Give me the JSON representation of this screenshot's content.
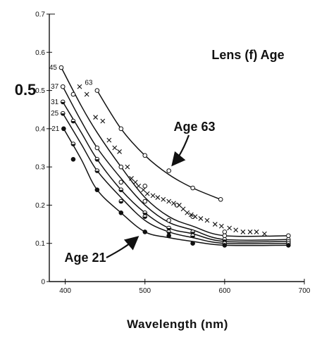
{
  "chart_data": {
    "type": "scatter",
    "title": "Lens (f) Age",
    "xlabel": "Wavelength (nm)",
    "ylabel": "",
    "xlim": [
      380,
      700
    ],
    "ylim": [
      0,
      0.7
    ],
    "x_ticks": [
      400,
      500,
      600,
      700
    ],
    "y_ticks": [
      0,
      0.1,
      0.2,
      0.3,
      0.4,
      0.5,
      0.6,
      0.7
    ],
    "y_tick_emphasis": "0.5",
    "grid": false,
    "series": [
      {
        "name": "45",
        "line": [
          [
            395,
            0.56
          ],
          [
            420,
            0.46
          ],
          [
            440,
            0.39
          ],
          [
            470,
            0.3
          ],
          [
            500,
            0.22
          ],
          [
            530,
            0.17
          ],
          [
            560,
            0.145
          ],
          [
            600,
            0.12
          ],
          [
            680,
            0.12
          ]
        ],
        "points": [
          [
            395,
            0.56
          ],
          [
            470,
            0.3
          ],
          [
            500,
            0.25
          ],
          [
            540,
            0.2
          ],
          [
            560,
            0.17
          ],
          [
            600,
            0.13
          ],
          [
            680,
            0.12
          ]
        ],
        "marker": "open"
      },
      {
        "name": "37",
        "line": [
          [
            397,
            0.51
          ],
          [
            420,
            0.42
          ],
          [
            440,
            0.35
          ],
          [
            470,
            0.27
          ],
          [
            500,
            0.2
          ],
          [
            530,
            0.155
          ],
          [
            560,
            0.135
          ],
          [
            600,
            0.11
          ],
          [
            680,
            0.11
          ]
        ],
        "points": [
          [
            397,
            0.51
          ],
          [
            410,
            0.49
          ],
          [
            440,
            0.35
          ],
          [
            470,
            0.26
          ],
          [
            500,
            0.21
          ],
          [
            530,
            0.16
          ],
          [
            600,
            0.12
          ],
          [
            680,
            0.11
          ]
        ],
        "marker": "open"
      },
      {
        "name": "31",
        "line": [
          [
            397,
            0.47
          ],
          [
            420,
            0.39
          ],
          [
            440,
            0.32
          ],
          [
            470,
            0.24
          ],
          [
            500,
            0.18
          ],
          [
            530,
            0.14
          ],
          [
            560,
            0.125
          ],
          [
            600,
            0.105
          ],
          [
            680,
            0.105
          ]
        ],
        "points": [
          [
            397,
            0.47
          ],
          [
            410,
            0.42
          ],
          [
            440,
            0.32
          ],
          [
            470,
            0.24
          ],
          [
            500,
            0.18
          ],
          [
            530,
            0.14
          ],
          [
            560,
            0.13
          ],
          [
            600,
            0.11
          ],
          [
            680,
            0.105
          ]
        ],
        "marker": "half"
      },
      {
        "name": "25",
        "line": [
          [
            397,
            0.44
          ],
          [
            420,
            0.36
          ],
          [
            440,
            0.29
          ],
          [
            470,
            0.22
          ],
          [
            500,
            0.16
          ],
          [
            530,
            0.13
          ],
          [
            560,
            0.115
          ],
          [
            600,
            0.1
          ],
          [
            680,
            0.1
          ]
        ],
        "points": [
          [
            397,
            0.44
          ],
          [
            410,
            0.36
          ],
          [
            440,
            0.29
          ],
          [
            470,
            0.21
          ],
          [
            500,
            0.17
          ],
          [
            530,
            0.13
          ],
          [
            560,
            0.12
          ],
          [
            600,
            0.1
          ],
          [
            680,
            0.1
          ]
        ],
        "marker": "half"
      },
      {
        "name": "21",
        "line": [
          [
            398,
            0.4
          ],
          [
            420,
            0.32
          ],
          [
            440,
            0.24
          ],
          [
            470,
            0.18
          ],
          [
            500,
            0.13
          ],
          [
            530,
            0.115
          ],
          [
            560,
            0.105
          ],
          [
            600,
            0.095
          ],
          [
            680,
            0.095
          ]
        ],
        "points": [
          [
            398,
            0.4
          ],
          [
            410,
            0.32
          ],
          [
            440,
            0.24
          ],
          [
            470,
            0.18
          ],
          [
            500,
            0.13
          ],
          [
            530,
            0.12
          ],
          [
            560,
            0.1
          ],
          [
            600,
            0.095
          ],
          [
            680,
            0.095
          ]
        ],
        "marker": "filled"
      },
      {
        "name": "63",
        "line": [
          [
            440,
            0.5
          ],
          [
            470,
            0.4
          ],
          [
            500,
            0.33
          ],
          [
            530,
            0.28
          ],
          [
            560,
            0.245
          ],
          [
            595,
            0.215
          ]
        ],
        "points": [
          [
            440,
            0.5
          ],
          [
            470,
            0.4
          ],
          [
            500,
            0.33
          ],
          [
            530,
            0.29
          ],
          [
            560,
            0.245
          ],
          [
            595,
            0.215
          ]
        ],
        "marker": "open"
      },
      {
        "name": "",
        "points": [
          [
            418,
            0.51
          ],
          [
            427,
            0.49
          ],
          [
            438,
            0.43
          ],
          [
            447,
            0.42
          ],
          [
            455,
            0.37
          ],
          [
            462,
            0.35
          ],
          [
            468,
            0.34
          ],
          [
            478,
            0.3
          ],
          [
            483,
            0.27
          ],
          [
            488,
            0.26
          ],
          [
            492,
            0.25
          ],
          [
            498,
            0.24
          ],
          [
            503,
            0.23
          ],
          [
            510,
            0.225
          ],
          [
            516,
            0.22
          ],
          [
            523,
            0.215
          ],
          [
            530,
            0.21
          ],
          [
            536,
            0.205
          ],
          [
            543,
            0.2
          ],
          [
            548,
            0.19
          ],
          [
            553,
            0.18
          ],
          [
            558,
            0.175
          ],
          [
            563,
            0.17
          ],
          [
            570,
            0.165
          ],
          [
            578,
            0.16
          ],
          [
            588,
            0.15
          ],
          [
            596,
            0.145
          ],
          [
            606,
            0.14
          ],
          [
            614,
            0.135
          ],
          [
            623,
            0.13
          ],
          [
            632,
            0.13
          ],
          [
            640,
            0.13
          ],
          [
            650,
            0.125
          ]
        ],
        "marker": "cross"
      }
    ],
    "annotations": [
      {
        "text": "Age 63",
        "x": 545,
        "y": 0.385
      },
      {
        "text": "Age 21",
        "x": 410,
        "y": 0.065
      }
    ]
  }
}
